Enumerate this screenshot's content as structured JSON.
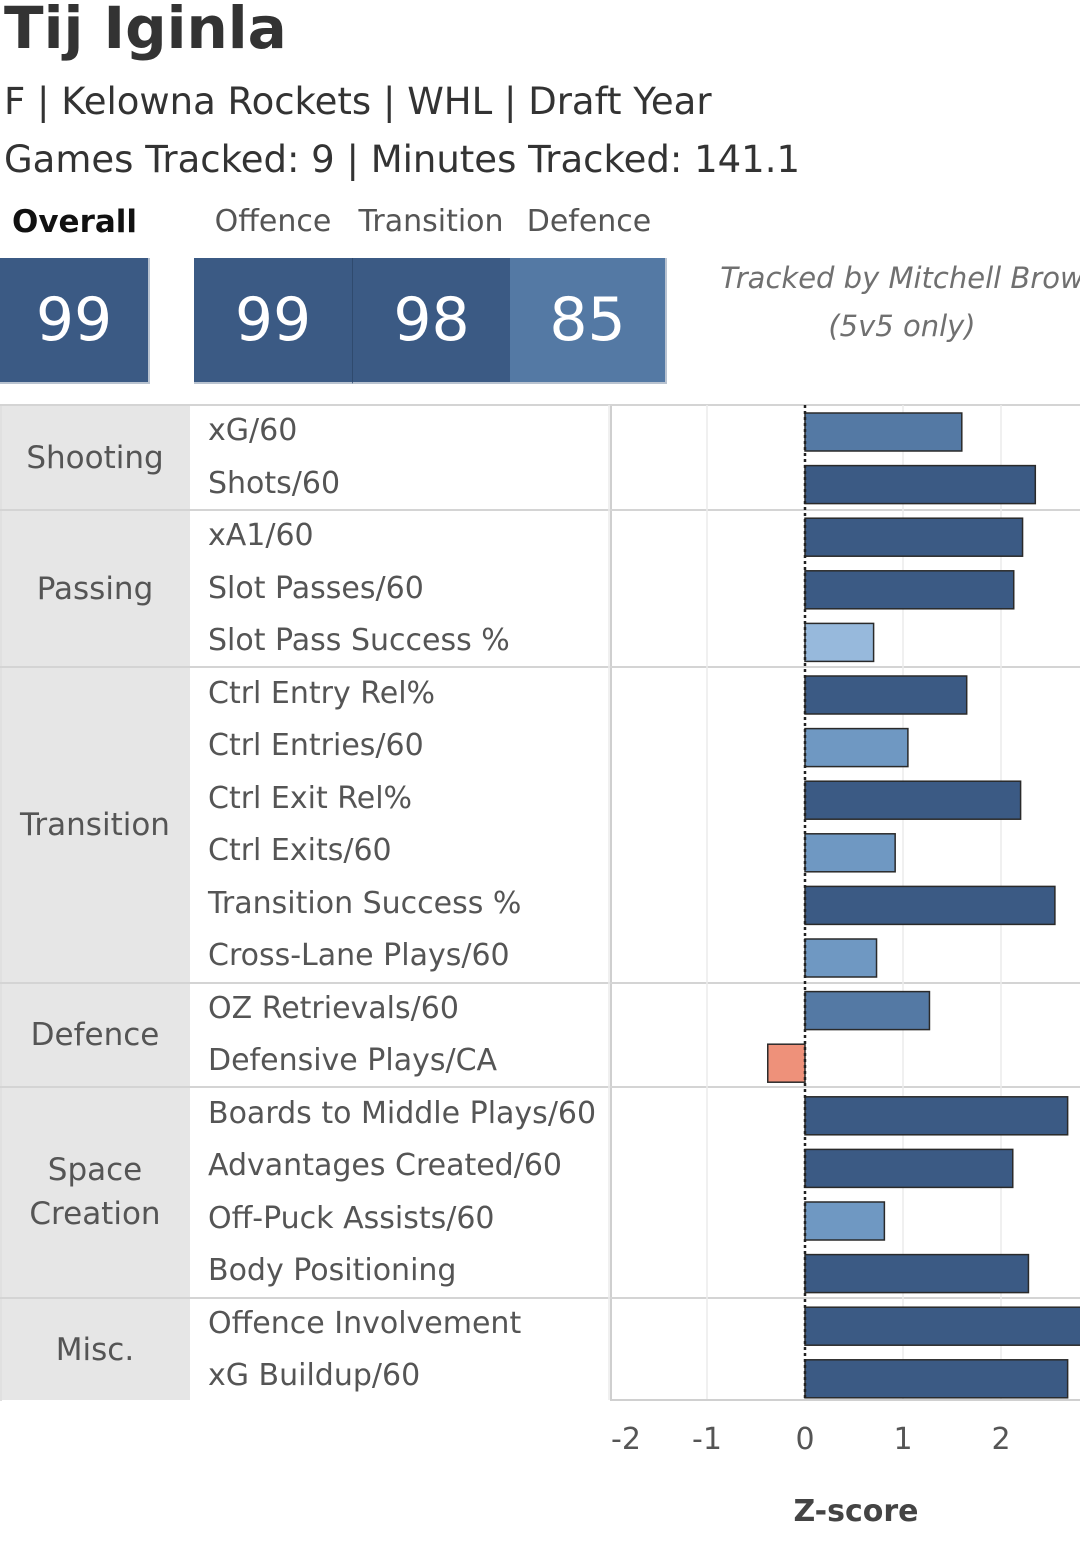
{
  "header": {
    "player_name": "Tij Iginla",
    "meta": "F | Kelowna Rockets | WHL | Draft Year",
    "tracked": "Games Tracked: 9 | Minutes Tracked: 141.1"
  },
  "scores": {
    "overall_label": "Overall",
    "offence_label": "Offence",
    "transition_label": "Transition",
    "defence_label": "Defence",
    "overall": "99",
    "offence": "99",
    "transition": "98",
    "defence": "85"
  },
  "credit": {
    "line1": "Tracked by Mitchell Brow",
    "line2": "(5v5 only)"
  },
  "categories": {
    "shooting": "Shooting",
    "passing": "Passing",
    "transition": "Transition",
    "defence": "Defence",
    "space1": "Space",
    "space2": "Creation",
    "misc": "Misc."
  },
  "colors": {
    "dark": "#3b5a84",
    "medium": "#5479a4",
    "light_medium": "#6f98c2",
    "light": "#97b9dc",
    "negative": "#ee917a"
  },
  "chart_data": {
    "type": "bar",
    "orientation": "horizontal",
    "xlabel": "Z-score",
    "xlim": [
      -2.0,
      2.8
    ],
    "xticks": [
      "-2",
      "-1",
      "0",
      "1",
      "2"
    ],
    "metrics": [
      {
        "category": "Shooting",
        "label": "xG/60",
        "value": 1.6,
        "color": "#5479a4"
      },
      {
        "category": "Shooting",
        "label": "Shots/60",
        "value": 2.35,
        "color": "#3b5a84"
      },
      {
        "category": "Passing",
        "label": "xA1/60",
        "value": 2.22,
        "color": "#3b5a84"
      },
      {
        "category": "Passing",
        "label": "Slot Passes/60",
        "value": 2.13,
        "color": "#3b5a84"
      },
      {
        "category": "Passing",
        "label": "Slot Pass Success %",
        "value": 0.7,
        "color": "#97b9dc"
      },
      {
        "category": "Transition",
        "label": "Ctrl Entry Rel%",
        "value": 1.65,
        "color": "#3b5a84"
      },
      {
        "category": "Transition",
        "label": "Ctrl Entries/60",
        "value": 1.05,
        "color": "#6f98c2"
      },
      {
        "category": "Transition",
        "label": "Ctrl Exit Rel%",
        "value": 2.2,
        "color": "#3b5a84"
      },
      {
        "category": "Transition",
        "label": "Ctrl Exits/60",
        "value": 0.92,
        "color": "#6f98c2"
      },
      {
        "category": "Transition",
        "label": "Transition Success %",
        "value": 2.55,
        "color": "#3b5a84"
      },
      {
        "category": "Transition",
        "label": "Cross-Lane Plays/60",
        "value": 0.73,
        "color": "#6f98c2"
      },
      {
        "category": "Defence",
        "label": "OZ Retrievals/60",
        "value": 1.27,
        "color": "#5479a4"
      },
      {
        "category": "Defence",
        "label": "Defensive Plays/CA",
        "value": -0.38,
        "color": "#ee917a"
      },
      {
        "category": "Space Creation",
        "label": "Boards to Middle Plays/60",
        "value": 2.68,
        "color": "#3b5a84"
      },
      {
        "category": "Space Creation",
        "label": "Advantages Created/60",
        "value": 2.12,
        "color": "#3b5a84"
      },
      {
        "category": "Space Creation",
        "label": "Off-Puck Assists/60",
        "value": 0.81,
        "color": "#6f98c2"
      },
      {
        "category": "Space Creation",
        "label": "Body Positioning",
        "value": 2.28,
        "color": "#3b5a84"
      },
      {
        "category": "Misc.",
        "label": "Offence Involvement",
        "value": 2.9,
        "color": "#3b5a84"
      },
      {
        "category": "Misc.",
        "label": "xG Buildup/60",
        "value": 2.68,
        "color": "#3b5a84"
      }
    ]
  }
}
